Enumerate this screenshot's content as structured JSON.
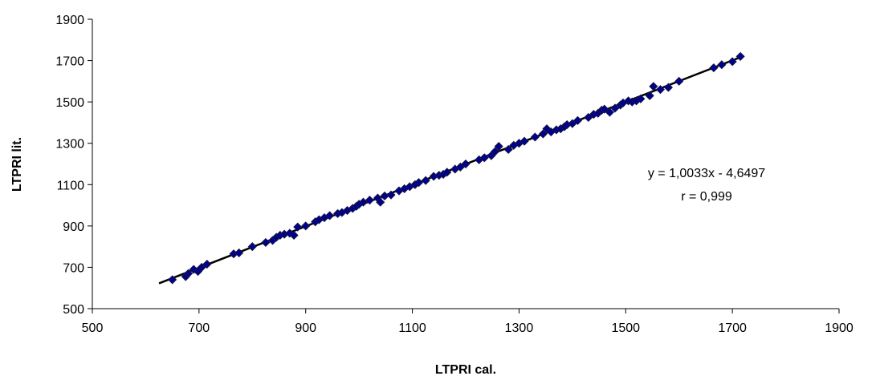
{
  "chart_data": {
    "type": "scatter",
    "xlabel": "LTPRI cal.",
    "ylabel": "LTPRI lit.",
    "xlim": [
      500,
      1900
    ],
    "ylim": [
      500,
      1900
    ],
    "xticks": [
      "500",
      "700",
      "900",
      "1100",
      "1300",
      "1500",
      "1700",
      "1900"
    ],
    "yticks": [
      "500",
      "700",
      "900",
      "1100",
      "1300",
      "1500",
      "1700",
      "1900"
    ],
    "grid": false,
    "legend": "none",
    "colors": {
      "marker": "#00008B",
      "marker_edge": "#1A1A3A",
      "trendline": "#000000"
    },
    "trendline": {
      "slope": 1.0033,
      "intercept": -4.6497,
      "x_start": 625,
      "x_end": 1720
    },
    "annotations": [
      "y = 1,0033x - 4,6497",
      "r = 0,999"
    ],
    "series": [
      {
        "x": [
          650,
          675,
          680,
          690,
          698,
          705,
          715,
          765,
          775,
          800,
          825,
          838,
          845,
          852,
          860,
          870,
          878,
          885,
          900,
          918,
          925,
          935,
          945,
          960,
          968,
          978,
          988,
          995,
          1000,
          1008,
          1020,
          1035,
          1040,
          1048,
          1060,
          1075,
          1085,
          1095,
          1105,
          1112,
          1125,
          1140,
          1150,
          1158,
          1165,
          1180,
          1190,
          1200,
          1225,
          1235,
          1248,
          1255,
          1262,
          1280,
          1290,
          1300,
          1310,
          1330,
          1345,
          1352,
          1360,
          1370,
          1378,
          1385,
          1390,
          1400,
          1410,
          1430,
          1440,
          1448,
          1455,
          1460,
          1470,
          1480,
          1490,
          1495,
          1505,
          1512,
          1520,
          1528,
          1545,
          1552,
          1565,
          1580,
          1600,
          1665,
          1680,
          1700,
          1715
        ],
        "y": [
          640,
          655,
          670,
          690,
          680,
          700,
          715,
          765,
          770,
          800,
          820,
          830,
          845,
          855,
          860,
          865,
          855,
          895,
          900,
          920,
          930,
          940,
          950,
          960,
          965,
          975,
          985,
          995,
          1005,
          1015,
          1025,
          1035,
          1015,
          1045,
          1050,
          1070,
          1080,
          1090,
          1100,
          1110,
          1120,
          1140,
          1145,
          1150,
          1160,
          1175,
          1185,
          1200,
          1220,
          1230,
          1240,
          1260,
          1285,
          1270,
          1290,
          1300,
          1310,
          1330,
          1345,
          1370,
          1355,
          1365,
          1370,
          1380,
          1390,
          1395,
          1410,
          1425,
          1440,
          1445,
          1460,
          1465,
          1450,
          1470,
          1485,
          1495,
          1505,
          1500,
          1505,
          1515,
          1530,
          1575,
          1560,
          1570,
          1600,
          1665,
          1680,
          1695,
          1720
        ]
      }
    ]
  }
}
